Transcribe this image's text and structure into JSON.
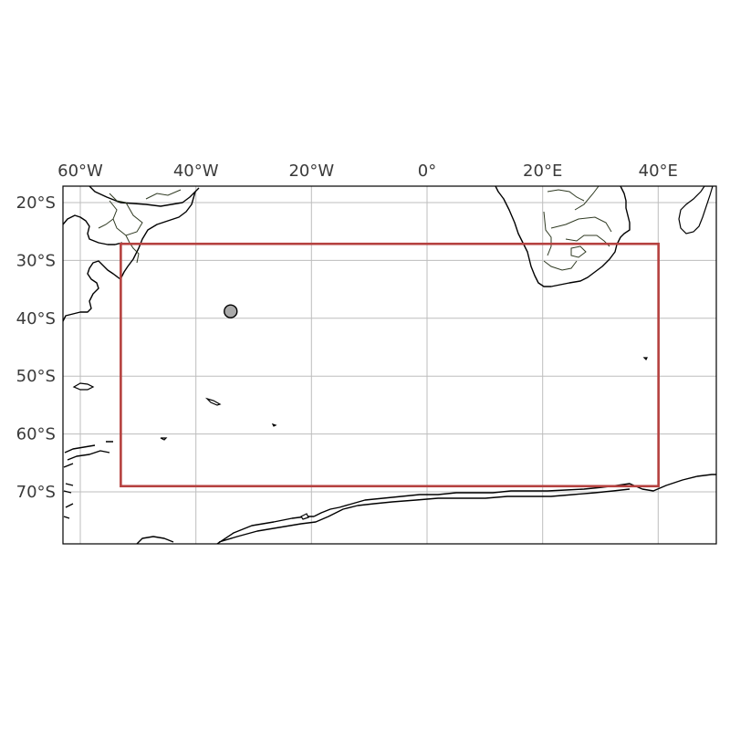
{
  "map": {
    "lon_labels": [
      "60°W",
      "40°W",
      "20°W",
      "0°",
      "20°E",
      "40°E"
    ],
    "lat_labels": [
      "20°S",
      "30°S",
      "40°S",
      "50°S",
      "60°S",
      "70°S"
    ],
    "extent": {
      "lon_min": -63,
      "lon_max": 50,
      "lat_min": -79,
      "lat_max": -17
    },
    "grid": true,
    "region_box": {
      "lon_min": -53,
      "lon_max": 40,
      "lat_min": -69,
      "lat_max": -27,
      "color": "#b5413f"
    },
    "marker": {
      "lon": -34,
      "lat": -38.7,
      "fill": "#a9a9a9",
      "stroke": "#000000"
    }
  }
}
